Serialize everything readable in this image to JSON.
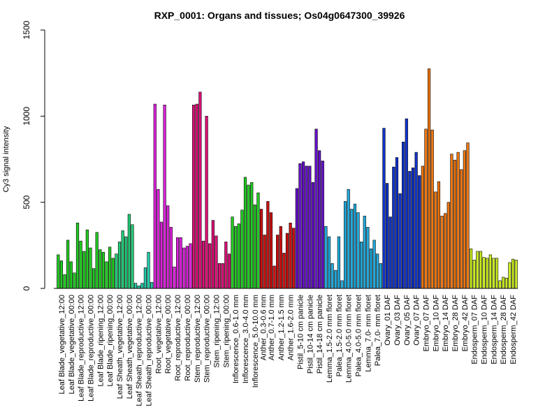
{
  "chart_data": {
    "type": "bar",
    "title": "RXP_0001: Organs and tissues; Os04g0647300_39926",
    "ylabel": "Cy3 signal intensity",
    "xlabel": "",
    "ylim": [
      0,
      1500
    ],
    "yticks": [
      0,
      500,
      1000,
      1500
    ],
    "grid": false,
    "legend": "none",
    "x_tick_labels": [
      "Leaf Blade_vegetative_12:00",
      "Leaf Blade_vegetative_00:00",
      "Leaf Blade_reproductive_12:00",
      "Leaf Blade_reproductive_00:00",
      "Leaf Blade_ripening_12:00",
      "Leaf Blade_ripening_00:00",
      "Leaf Sheath_vegetative_12:00",
      "Leaf Sheath_vegetative_00:00",
      "Leaf Sheath_reproductive_12:00",
      "Leaf Sheath_reproductive_00:00",
      "Root_vegetative_12:00",
      "Root_vegetative_00:00",
      "Root_reproductive_12:00",
      "Root_reproductive_00:00",
      "Stem_reproductive_12:00",
      "Stem_reproductive_00:00",
      "Stem_ripening_12:00",
      "Stem_ripening_00:00",
      "Inflorescence_0.6-1.0 mm",
      "Inflorescence_3.0-4.0 mm",
      "Inflorescence_5.0-10.0 mm",
      "Anther_0.3-0.6 mm",
      "Anther_0.7-1.0 mm",
      "Anther_1.2-1.5 mm",
      "Anther_1.6-2.0 mm",
      "Pistil_5-10 cm panicle",
      "Pistil_10-14 cm panicle",
      "Pistil_14-18 cm panicle",
      "Lemma_1.5-2.0 mm floret",
      "Palea_1.5-2.0 mm floret",
      "Lemma_4.0-5.0 mm floret",
      "Palea_4.0-5.0 mm floret",
      "Lemma_7.0- mm floret",
      "Palea_7.0- mm floret",
      "Ovary_01 DAF",
      "Ovary_03 DAF",
      "Ovary_05 DAF",
      "Ovary_07 DAF",
      "Embryo_07 DAF",
      "Embryo_10 DAF",
      "Embryo_14 DAF",
      "Embryo_28 DAF",
      "Embryo_42 DAF",
      "Endosperm_07 DAF",
      "Endosperm_10 DAF",
      "Endosperm_14 DAF",
      "Endosperm_28 DAF",
      "Endosperm_42 DAF"
    ],
    "groups": [
      {
        "color": "#22cc22",
        "values": [
          195,
          160,
          80
        ]
      },
      {
        "color": "#22cc22",
        "values": [
          280,
          155,
          90
        ]
      },
      {
        "color": "#22cc22",
        "values": [
          380,
          275,
          215
        ]
      },
      {
        "color": "#22cc22",
        "values": [
          340,
          235,
          115
        ]
      },
      {
        "color": "#22cc22",
        "values": [
          325,
          225,
          210
        ]
      },
      {
        "color": "#22cc22",
        "values": [
          155,
          240,
          175
        ]
      },
      {
        "color": "#22cc77",
        "values": [
          200,
          270,
          335
        ]
      },
      {
        "color": "#22cc77",
        "values": [
          300,
          430,
          370
        ]
      },
      {
        "color": "#22ccaa",
        "values": [
          30,
          15,
          30
        ]
      },
      {
        "color": "#22ccaa",
        "values": [
          120,
          210,
          35
        ]
      },
      {
        "color": "#dd22dd",
        "values": [
          1070,
          575,
          385
        ]
      },
      {
        "color": "#dd22dd",
        "values": [
          1065,
          480,
          355
        ]
      },
      {
        "color": "#dd22dd",
        "values": [
          125,
          295,
          295
        ]
      },
      {
        "color": "#dd22dd",
        "values": [
          235,
          245,
          260
        ]
      },
      {
        "color": "#dd1177",
        "values": [
          1065,
          1070,
          1140
        ]
      },
      {
        "color": "#dd1177",
        "values": [
          275,
          1000,
          260
        ]
      },
      {
        "color": "#dd1177",
        "values": [
          395,
          305,
          145
        ]
      },
      {
        "color": "#dd1177",
        "values": [
          145,
          270,
          200
        ]
      },
      {
        "color": "#22cc22",
        "values": [
          415,
          360,
          375
        ]
      },
      {
        "color": "#22cc22",
        "values": [
          455,
          645,
          600
        ]
      },
      {
        "color": "#22cc22",
        "values": [
          615,
          485,
          555
        ]
      },
      {
        "color": "#cc1111",
        "values": [
          460,
          310
        ]
      },
      {
        "color": "#cc1111",
        "values": [
          505,
          440,
          130
        ]
      },
      {
        "color": "#cc1111",
        "values": [
          310,
          360,
          205
        ]
      },
      {
        "color": "#cc1111",
        "values": [
          320,
          380,
          350
        ]
      },
      {
        "color": "#6611cc",
        "values": [
          580,
          725,
          735
        ]
      },
      {
        "color": "#6611cc",
        "values": [
          710,
          710,
          615
        ]
      },
      {
        "color": "#6611cc",
        "values": [
          925,
          800,
          740
        ]
      },
      {
        "color": "#22aadd",
        "values": [
          360,
          300,
          145
        ]
      },
      {
        "color": "#22aadd",
        "values": [
          105,
          300,
          45
        ]
      },
      {
        "color": "#22aadd",
        "values": [
          505,
          575,
          460
        ]
      },
      {
        "color": "#22aadd",
        "values": [
          490,
          440,
          270
        ]
      },
      {
        "color": "#22aadd",
        "values": [
          420,
          355,
          230
        ]
      },
      {
        "color": "#22aadd",
        "values": [
          280,
          200,
          145
        ]
      },
      {
        "color": "#1133cc",
        "values": [
          930,
          610,
          415
        ]
      },
      {
        "color": "#1133cc",
        "values": [
          705,
          760,
          550
        ]
      },
      {
        "color": "#1133cc",
        "values": [
          850,
          985,
          680
        ]
      },
      {
        "color": "#1133cc",
        "values": [
          700,
          790,
          655
        ]
      },
      {
        "color": "#ee7711",
        "values": [
          710,
          925,
          1275
        ]
      },
      {
        "color": "#ee7711",
        "values": [
          920,
          560,
          620
        ]
      },
      {
        "color": "#ee7711",
        "values": [
          420,
          435,
          500
        ]
      },
      {
        "color": "#ee7711",
        "values": [
          780,
          745,
          790
        ]
      },
      {
        "color": "#ee7711",
        "values": [
          690,
          800,
          845
        ]
      },
      {
        "color": "#ccee22",
        "values": [
          230,
          165,
          215
        ]
      },
      {
        "color": "#ccee22",
        "values": [
          215,
          180,
          175
        ]
      },
      {
        "color": "#ccee22",
        "values": [
          195,
          175,
          175
        ]
      },
      {
        "color": "#ccee22",
        "values": [
          45,
          65,
          60
        ]
      },
      {
        "color": "#ccee22",
        "values": [
          150,
          170,
          165
        ]
      }
    ]
  }
}
